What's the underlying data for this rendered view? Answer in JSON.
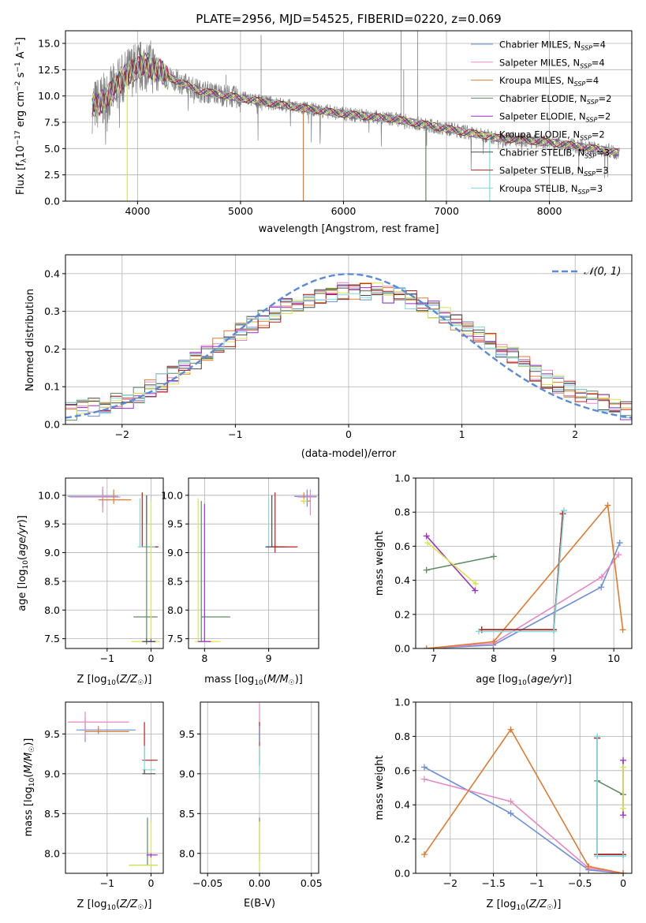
{
  "colors": {
    "grid": "#b0b0b0",
    "spectrum": "#808080",
    "normal_curve": "#5b8bd8"
  },
  "models": [
    {
      "label": "Chabrier MILES, N",
      "sub": "SSP",
      "suffix": "=4",
      "color": "#6a8fd8"
    },
    {
      "label": "Salpeter MILES, N",
      "sub": "SSP",
      "suffix": "=4",
      "color": "#e787c2"
    },
    {
      "label": "Kroupa MILES, N",
      "sub": "SSP",
      "suffix": "=4",
      "color": "#de7b2e"
    },
    {
      "label": "Chabrier ELODIE, N",
      "sub": "SSP",
      "suffix": "=2",
      "color": "#5e8a63"
    },
    {
      "label": "Salpeter ELODIE, N",
      "sub": "SSP",
      "suffix": "=2",
      "color": "#9b2fc4"
    },
    {
      "label": "Kroupa ELODIE, N",
      "sub": "SSP",
      "suffix": "=2",
      "color": "#d9e551"
    },
    {
      "label": "Chabrier STELIB, N",
      "sub": "SSP",
      "suffix": "=3",
      "color": "#4a4a4a"
    },
    {
      "label": "Salpeter STELIB, N",
      "sub": "SSP",
      "suffix": "=3",
      "color": "#b8201c"
    },
    {
      "label": "Kroupa STELIB, N",
      "sub": "SSP",
      "suffix": "=3",
      "color": "#7fd8dc"
    }
  ],
  "chart_data": [
    {
      "id": "spectrum",
      "type": "line",
      "title": "PLATE=2956, MJD=54525, FIBERID=0220, z=0.069",
      "xlabel": "wavelength [Angstrom, rest frame]",
      "ylabel": "Flux [f_λ 10^-17 erg cm^-2 s^-1 A^-1]",
      "xlim": [
        3300,
        8800
      ],
      "ylim": [
        0,
        16.2
      ],
      "xticks": [
        4000,
        5000,
        6000,
        7000,
        8000
      ],
      "yticks": [
        0.0,
        2.5,
        5.0,
        7.5,
        10.0,
        12.5,
        15.0
      ],
      "continuum": [
        [
          3560,
          9.0
        ],
        [
          3700,
          9.8
        ],
        [
          3800,
          11.0
        ],
        [
          3950,
          12.5
        ],
        [
          4100,
          13.0
        ],
        [
          4300,
          11.8
        ],
        [
          4600,
          10.5
        ],
        [
          5000,
          9.8
        ],
        [
          5500,
          9.0
        ],
        [
          6000,
          8.3
        ],
        [
          6500,
          7.8
        ],
        [
          7000,
          6.9
        ],
        [
          7500,
          6.0
        ],
        [
          8000,
          5.6
        ],
        [
          8500,
          4.9
        ],
        [
          8680,
          4.6
        ]
      ]
    },
    {
      "id": "residuals",
      "type": "histogram",
      "xlabel": "(data-model)/error",
      "ylabel": "Normed distribution",
      "xlim": [
        -2.5,
        2.5
      ],
      "ylim": [
        0,
        0.45
      ],
      "xticks": [
        -2,
        -1,
        0,
        1,
        2
      ],
      "yticks": [
        0.0,
        0.1,
        0.2,
        0.3,
        0.4
      ],
      "bin_width": 0.1,
      "series_name": "𝒩(0, 1)",
      "base_hist": [
        0.035,
        0.04,
        0.045,
        0.05,
        0.06,
        0.065,
        0.08,
        0.095,
        0.11,
        0.13,
        0.15,
        0.17,
        0.19,
        0.21,
        0.225,
        0.245,
        0.265,
        0.28,
        0.295,
        0.31,
        0.32,
        0.335,
        0.345,
        0.35,
        0.355,
        0.355,
        0.355,
        0.35,
        0.345,
        0.34,
        0.33,
        0.32,
        0.305,
        0.29,
        0.275,
        0.255,
        0.24,
        0.22,
        0.2,
        0.18,
        0.16,
        0.14,
        0.12,
        0.105,
        0.09,
        0.078,
        0.065,
        0.055,
        0.045,
        0.035
      ]
    },
    {
      "id": "age_vs_z",
      "type": "scatter",
      "xlabel": "Z [log10(Z/Z☉)]",
      "ylabel": "age [log10(age/yr)]",
      "xlim": [
        -1.95,
        0.28
      ],
      "ylim": [
        7.33,
        10.3
      ],
      "xticks": [
        -1,
        0
      ],
      "yticks": [
        7.5,
        8.0,
        8.5,
        9.0,
        9.5,
        10.0
      ]
    },
    {
      "id": "age_vs_mass",
      "type": "scatter",
      "xlabel": "mass [log10(M/M☉)]",
      "ylabel": "",
      "xlim": [
        7.75,
        9.78
      ],
      "ylim": [
        7.33,
        10.3
      ],
      "xticks": [
        8,
        9
      ],
      "yticks": [
        7.5,
        8.0,
        8.5,
        9.0,
        9.5,
        10.0
      ]
    },
    {
      "id": "weight_vs_age",
      "type": "line",
      "xlabel": "age [log10(age/yr)]",
      "ylabel": "mass weight",
      "xlim": [
        6.7,
        10.3
      ],
      "ylim": [
        0,
        1.0
      ],
      "xticks": [
        7,
        8,
        9,
        10
      ],
      "yticks": [
        0.0,
        0.2,
        0.4,
        0.6,
        0.8,
        1.0
      ],
      "series": [
        {
          "model": 0,
          "points": [
            [
              6.88,
              0.0
            ],
            [
              7.99,
              0.02
            ],
            [
              9.79,
              0.36
            ],
            [
              10.1,
              0.62
            ]
          ]
        },
        {
          "model": 1,
          "points": [
            [
              6.88,
              0.0
            ],
            [
              7.99,
              0.03
            ],
            [
              9.8,
              0.42
            ],
            [
              10.08,
              0.55
            ]
          ]
        },
        {
          "model": 2,
          "points": [
            [
              6.88,
              0.0
            ],
            [
              8.0,
              0.04
            ],
            [
              9.9,
              0.84
            ],
            [
              10.15,
              0.11
            ]
          ]
        },
        {
          "model": 3,
          "points": [
            [
              6.88,
              0.46
            ],
            [
              8.0,
              0.54
            ]
          ]
        },
        {
          "model": 4,
          "points": [
            [
              6.88,
              0.66
            ],
            [
              7.69,
              0.34
            ]
          ]
        },
        {
          "model": 5,
          "points": [
            [
              6.9,
              0.62
            ],
            [
              7.7,
              0.38
            ]
          ]
        },
        {
          "model": 6,
          "points": [
            [
              7.8,
              0.11
            ],
            [
              9.0,
              0.11
            ],
            [
              9.15,
              0.79
            ]
          ]
        },
        {
          "model": 7,
          "points": [
            [
              7.8,
              0.11
            ],
            [
              9.0,
              0.11
            ],
            [
              9.15,
              0.79
            ]
          ]
        },
        {
          "model": 8,
          "points": [
            [
              7.75,
              0.1
            ],
            [
              9.0,
              0.1
            ],
            [
              9.17,
              0.81
            ]
          ]
        }
      ]
    },
    {
      "id": "mass_vs_z",
      "type": "scatter",
      "xlabel": "Z [log10(Z/Z☉)]",
      "ylabel": "mass [log10(M/M☉)]",
      "xlim": [
        -1.95,
        0.28
      ],
      "ylim": [
        7.75,
        9.9
      ],
      "xticks": [
        -1,
        0
      ],
      "yticks": [
        8.0,
        8.5,
        9.0,
        9.5
      ]
    },
    {
      "id": "mass_vs_ebv",
      "type": "scatter",
      "xlabel": "E(B-V)",
      "ylabel": "",
      "xlim": [
        -0.057,
        0.057
      ],
      "ylim": [
        7.75,
        9.9
      ],
      "xticks": [
        -0.05,
        0.0,
        0.05
      ],
      "yticks": [
        8.0,
        8.5,
        9.0,
        9.5
      ]
    },
    {
      "id": "weight_vs_z",
      "type": "line",
      "xlabel": "Z [log10(Z/Z☉)]",
      "ylabel": "mass weight",
      "xlim": [
        -2.4,
        0.1
      ],
      "ylim": [
        0,
        1.0
      ],
      "xticks": [
        -2.0,
        -1.5,
        -1.0,
        -0.5,
        0.0
      ],
      "yticks": [
        0.0,
        0.2,
        0.4,
        0.6,
        0.8,
        1.0
      ],
      "series": [
        {
          "model": 0,
          "points": [
            [
              -2.3,
              0.62
            ],
            [
              -1.3,
              0.35
            ],
            [
              -0.4,
              0.02
            ],
            [
              0.0,
              0.0
            ]
          ]
        },
        {
          "model": 1,
          "points": [
            [
              -2.3,
              0.55
            ],
            [
              -1.3,
              0.42
            ],
            [
              -0.4,
              0.03
            ],
            [
              0.0,
              0.0
            ]
          ]
        },
        {
          "model": 2,
          "points": [
            [
              -2.3,
              0.11
            ],
            [
              -1.3,
              0.84
            ],
            [
              -0.4,
              0.04
            ],
            [
              0.0,
              0.0
            ]
          ]
        },
        {
          "model": 3,
          "points": [
            [
              -0.3,
              0.54
            ],
            [
              0.0,
              0.46
            ]
          ]
        },
        {
          "model": 4,
          "points": [
            [
              0.0,
              0.66
            ],
            [
              0.0,
              0.34
            ]
          ]
        },
        {
          "model": 5,
          "points": [
            [
              0.0,
              0.62
            ],
            [
              0.0,
              0.38
            ]
          ]
        },
        {
          "model": 6,
          "points": [
            [
              -0.3,
              0.79
            ],
            [
              -0.3,
              0.11
            ],
            [
              0.0,
              0.11
            ]
          ]
        },
        {
          "model": 7,
          "points": [
            [
              -0.3,
              0.79
            ],
            [
              -0.3,
              0.11
            ],
            [
              0.0,
              0.11
            ]
          ]
        },
        {
          "model": 8,
          "points": [
            [
              -0.3,
              0.8
            ],
            [
              -0.3,
              0.1
            ],
            [
              0.0,
              0.1
            ]
          ]
        }
      ]
    }
  ]
}
